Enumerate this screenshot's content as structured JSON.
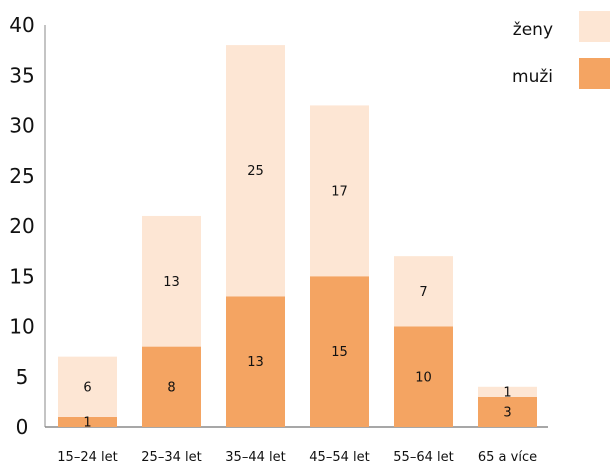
{
  "chart_data": {
    "type": "bar",
    "stacked": true,
    "categories": [
      "15–24 let",
      "25–34 let",
      "35–44 let",
      "45–54 let",
      "55–64 let",
      "65 a více"
    ],
    "series": [
      {
        "name": "muži",
        "values": [
          1,
          8,
          13,
          15,
          10,
          3
        ],
        "color": "#f4a462"
      },
      {
        "name": "ženy",
        "values": [
          6,
          13,
          25,
          17,
          7,
          1
        ],
        "color": "#fde6d4"
      }
    ],
    "ylim": [
      0,
      40
    ],
    "yticks": [
      "0",
      "5",
      "10",
      "15",
      "20",
      "25",
      "30",
      "35",
      "40"
    ],
    "legend_position": "top-right",
    "legend_order": [
      "ženy",
      "muži"
    ],
    "grid": false
  }
}
